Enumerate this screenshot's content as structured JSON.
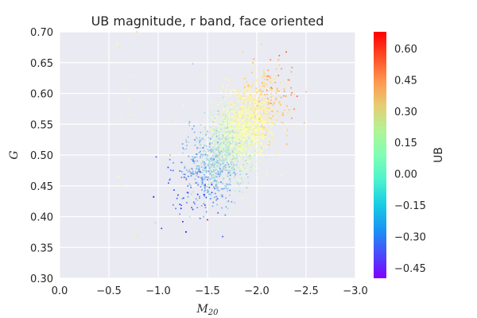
{
  "chart_data": {
    "type": "scatter",
    "title": "UB magnitude, r band, face oriented",
    "xlabel": "M",
    "xlabel_sub": "20",
    "ylabel": "G",
    "xlim": [
      0.0,
      -3.0
    ],
    "ylim": [
      0.3,
      0.7
    ],
    "x_ticks": [
      "0.0",
      "−0.5",
      "−1.0",
      "−1.5",
      "−2.0",
      "−2.5",
      "−3.0"
    ],
    "y_ticks": [
      "0.30",
      "0.35",
      "0.40",
      "0.45",
      "0.50",
      "0.55",
      "0.60",
      "0.65",
      "0.70"
    ],
    "grid": true,
    "colorbar": {
      "label": "UB",
      "range": [
        -0.5,
        0.68
      ],
      "ticks": [
        "0.60",
        "0.45",
        "0.30",
        "0.15",
        "0.00",
        "−0.15",
        "−0.30",
        "−0.45"
      ],
      "colormap": "rainbow"
    },
    "points": [
      [
        -0.52,
        0.665,
        0.02
      ],
      [
        -0.58,
        0.68,
        0.1
      ],
      [
        -0.6,
        0.675,
        0.25
      ],
      [
        -0.68,
        0.605,
        0.05
      ],
      [
        -0.7,
        0.59,
        0.08
      ],
      [
        -0.78,
        0.7,
        0.3
      ],
      [
        -0.75,
        0.628,
        0.12
      ],
      [
        -0.82,
        0.575,
        0.18
      ],
      [
        -0.62,
        0.562,
        0.05
      ],
      [
        -0.65,
        0.545,
        0.22
      ],
      [
        -0.72,
        0.565,
        0.1
      ],
      [
        -0.62,
        0.515,
        0.02
      ],
      [
        -0.62,
        0.45,
        0.05
      ],
      [
        -0.6,
        0.465,
        0.12
      ],
      [
        -0.78,
        0.368,
        0.25
      ],
      [
        -0.66,
        0.305,
        0.0
      ],
      [
        -0.8,
        0.432,
        0.08
      ],
      [
        -0.98,
        0.497,
        -0.35
      ],
      [
        -0.97,
        0.39,
        -0.1
      ],
      [
        -1.05,
        0.433,
        0.02
      ],
      [
        -1.35,
        0.648,
        -0.15
      ],
      [
        -1.48,
        0.628,
        0.05
      ],
      [
        -1.25,
        0.58,
        0.1
      ],
      [
        -1.14,
        0.555,
        0.25
      ],
      [
        -1.5,
        0.395,
        0.68
      ],
      [
        -1.46,
        0.4,
        -0.2
      ],
      [
        -1.1,
        0.48,
        -0.4
      ],
      [
        -1.15,
        0.475,
        -0.35
      ],
      [
        -1.12,
        0.5,
        0.4
      ],
      [
        -1.2,
        0.44,
        0.05
      ],
      [
        -1.18,
        0.515,
        0.12
      ],
      [
        -1.28,
        0.455,
        0.2
      ],
      [
        -1.36,
        0.49,
        -0.3
      ],
      [
        -2.2,
        0.605,
        0.28
      ],
      [
        -2.3,
        0.62,
        0.12
      ],
      [
        -2.4,
        0.61,
        0.2
      ],
      [
        -2.35,
        0.635,
        0.4
      ],
      [
        -2.25,
        0.64,
        0.45
      ],
      [
        -2.5,
        0.62,
        0.05
      ],
      [
        -2.4,
        0.55,
        0.1
      ],
      [
        -2.45,
        0.54,
        0.15
      ],
      [
        -2.35,
        0.57,
        0.22
      ],
      [
        -2.1,
        0.47,
        0.08
      ],
      [
        -2.2,
        0.5,
        0.05
      ],
      [
        -2.25,
        0.468,
        0.1
      ],
      [
        -1.92,
        0.45,
        0.12
      ],
      [
        -1.85,
        0.43,
        0.1
      ],
      [
        -1.3,
        0.61,
        0.02
      ],
      [
        -1.34,
        0.43,
        0.15
      ],
      [
        -1.4,
        0.425,
        0.08
      ],
      [
        -1.76,
        0.605,
        0.05
      ],
      [
        -1.82,
        0.41,
        0.04
      ],
      [
        -1.95,
        0.42,
        0.06
      ],
      [
        -2.05,
        0.44,
        0.03
      ],
      [
        -2.15,
        0.43,
        0.02
      ],
      [
        -1.55,
        0.43,
        -0.05
      ]
    ],
    "cluster": {
      "main": {
        "center_x": -1.78,
        "center_y": 0.528,
        "spread_x": 0.22,
        "spread_y": 0.045,
        "correlation": 0.6,
        "count": 2400
      },
      "color_trend": "UB increases toward more negative M20 and higher G (about −0.15 at lower-left to 0.40 at upper-right)"
    }
  }
}
